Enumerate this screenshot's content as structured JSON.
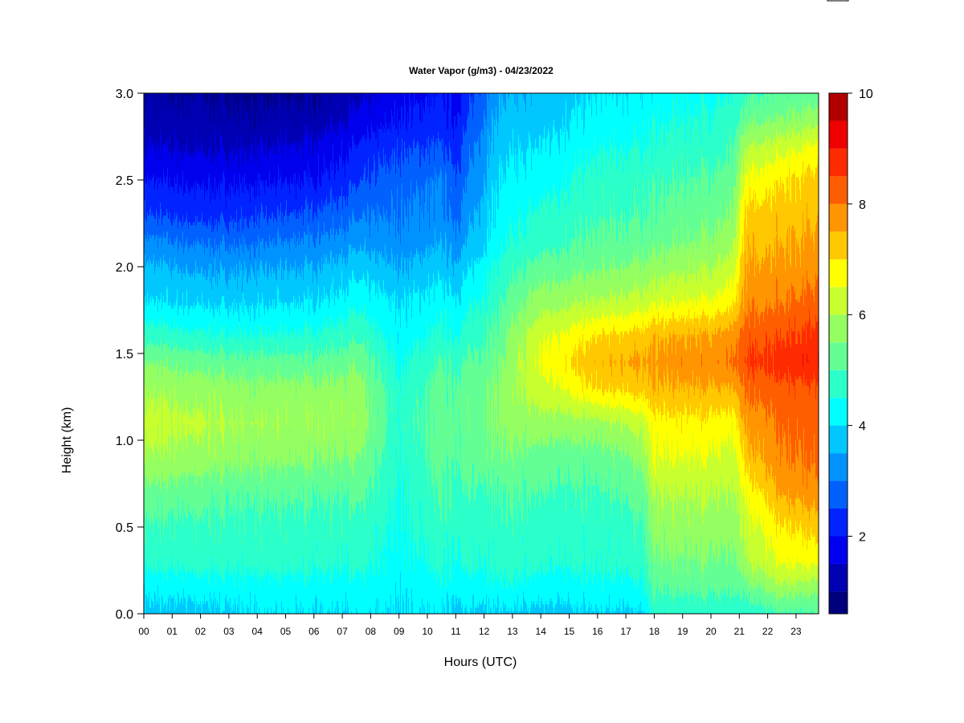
{
  "chart_data": {
    "type": "heatmap",
    "title": "Water Vapor (g/m3) - 04/23/2022",
    "xlabel": "Hours (UTC)",
    "ylabel": "Height (km)",
    "x_ticks": [
      "00",
      "01",
      "02",
      "03",
      "04",
      "05",
      "06",
      "07",
      "08",
      "09",
      "10",
      "11",
      "12",
      "13",
      "14",
      "15",
      "16",
      "17",
      "18",
      "19",
      "20",
      "21",
      "22",
      "23"
    ],
    "xlim": [
      0,
      23.8
    ],
    "y_ticks": [
      "0.0",
      "0.5",
      "1.0",
      "1.5",
      "2.0",
      "2.5",
      "3.0"
    ],
    "ylim": [
      0,
      3.0
    ],
    "colorbar": {
      "ticks": [
        "2",
        "4",
        "6",
        "8",
        "10"
      ],
      "range": [
        0.6,
        10
      ],
      "levels": [
        0.6,
        1.0,
        1.5,
        2.0,
        2.5,
        3.0,
        3.5,
        4.0,
        4.5,
        5.0,
        5.5,
        6.0,
        6.5,
        7.0,
        7.5,
        8.0,
        8.5,
        9.0,
        9.5,
        10.0
      ],
      "colors": [
        "#00007f",
        "#0000b2",
        "#0000ee",
        "#0023ff",
        "#0061ff",
        "#0093ff",
        "#00c8ff",
        "#00ffff",
        "#2bffca",
        "#63ff94",
        "#95ff61",
        "#c8ff2f",
        "#ffff00",
        "#ffc800",
        "#ff9500",
        "#ff5e00",
        "#ff2b00",
        "#ee0000",
        "#b20000",
        "#7f0000"
      ]
    },
    "heights": [
      0.0,
      0.1,
      0.2,
      0.3,
      0.5,
      0.7,
      0.9,
      1.1,
      1.3,
      1.45,
      1.6,
      1.8,
      2.0,
      2.15,
      2.3,
      2.5,
      2.7,
      2.85,
      3.0
    ],
    "profiles": [
      {
        "hour": 0,
        "values": [
          3.8,
          4.0,
          4.3,
          4.6,
          4.9,
          5.3,
          5.9,
          6.2,
          5.9,
          5.5,
          4.8,
          4.0,
          3.6,
          3.1,
          2.5,
          2.0,
          1.5,
          1.2,
          1.0
        ]
      },
      {
        "hour": 2,
        "values": [
          3.8,
          4.1,
          4.4,
          4.7,
          4.9,
          5.2,
          5.8,
          6.1,
          5.8,
          5.3,
          4.6,
          3.9,
          3.4,
          2.9,
          2.3,
          1.9,
          1.4,
          1.2,
          1.0
        ]
      },
      {
        "hour": 4,
        "values": [
          4.0,
          4.2,
          4.4,
          4.7,
          4.8,
          5.1,
          5.6,
          5.9,
          5.6,
          5.2,
          4.5,
          3.9,
          3.4,
          2.9,
          2.4,
          1.9,
          1.4,
          1.1,
          0.9
        ]
      },
      {
        "hour": 6,
        "values": [
          4.0,
          4.2,
          4.4,
          4.7,
          4.8,
          5.1,
          5.6,
          5.9,
          5.7,
          5.2,
          4.6,
          4.0,
          3.5,
          3.1,
          2.6,
          2.0,
          1.6,
          1.2,
          1.0
        ]
      },
      {
        "hour": 7.5,
        "values": [
          4.0,
          4.2,
          4.4,
          4.6,
          4.8,
          5.1,
          5.5,
          5.8,
          5.7,
          5.4,
          4.9,
          4.3,
          3.8,
          3.3,
          2.9,
          2.4,
          2.0,
          1.6,
          1.3
        ]
      },
      {
        "hour": 9,
        "values": [
          4.0,
          4.1,
          4.2,
          4.3,
          4.4,
          4.5,
          4.6,
          4.7,
          4.6,
          4.4,
          4.2,
          4.0,
          3.5,
          3.2,
          3.0,
          2.8,
          2.4,
          2.0,
          1.8
        ]
      },
      {
        "hour": 10.5,
        "values": [
          4.0,
          4.2,
          4.4,
          4.6,
          4.8,
          5.0,
          5.2,
          5.3,
          5.2,
          5.0,
          4.6,
          4.2,
          3.8,
          3.4,
          3.2,
          3.0,
          2.5,
          2.2,
          2.0
        ]
      },
      {
        "hour": 11,
        "values": [
          3.9,
          4.1,
          4.3,
          4.5,
          4.7,
          4.9,
          5.1,
          5.2,
          5.1,
          4.9,
          4.5,
          4.1,
          3.6,
          3.2,
          2.9,
          2.6,
          2.3,
          2.0,
          1.8
        ]
      },
      {
        "hour": 12.5,
        "values": [
          3.9,
          4.2,
          4.5,
          4.7,
          4.8,
          5.0,
          5.4,
          5.6,
          5.6,
          5.4,
          5.2,
          4.9,
          4.6,
          4.3,
          4.2,
          4.0,
          3.8,
          3.6,
          3.4
        ]
      },
      {
        "hour": 14,
        "values": [
          3.8,
          4.1,
          4.4,
          4.6,
          4.8,
          5.0,
          5.3,
          5.8,
          6.3,
          6.6,
          6.4,
          5.8,
          5.2,
          4.8,
          4.6,
          4.3,
          4.0,
          3.8,
          3.6
        ]
      },
      {
        "hour": 16,
        "values": [
          3.9,
          4.2,
          4.4,
          4.6,
          4.7,
          4.9,
          5.2,
          5.8,
          7.0,
          7.4,
          7.0,
          6.0,
          5.4,
          5.1,
          4.9,
          4.7,
          4.4,
          4.2,
          4.0
        ]
      },
      {
        "hour": 17.5,
        "values": [
          3.9,
          4.2,
          4.5,
          4.7,
          4.9,
          5.2,
          5.6,
          6.2,
          7.2,
          7.6,
          7.2,
          6.2,
          5.6,
          5.2,
          5.0,
          4.8,
          4.5,
          4.3,
          4.1
        ]
      },
      {
        "hour": 18,
        "values": [
          4.6,
          4.9,
          5.2,
          5.4,
          5.7,
          6.0,
          6.5,
          6.8,
          7.4,
          7.7,
          7.4,
          6.4,
          5.7,
          5.3,
          5.1,
          4.9,
          4.6,
          4.4,
          4.2
        ]
      },
      {
        "hour": 20,
        "values": [
          4.7,
          5.0,
          5.3,
          5.5,
          5.8,
          6.1,
          6.5,
          6.9,
          7.5,
          7.9,
          7.6,
          6.6,
          6.0,
          5.6,
          5.4,
          5.1,
          4.8,
          4.6,
          4.4
        ]
      },
      {
        "hour": 20.8,
        "values": [
          4.6,
          4.9,
          5.1,
          5.3,
          5.6,
          5.9,
          6.2,
          6.6,
          7.4,
          8.0,
          7.7,
          6.8,
          6.2,
          5.8,
          5.5,
          5.2,
          4.9,
          4.7,
          4.5
        ]
      },
      {
        "hour": 21.2,
        "values": [
          4.6,
          5.0,
          5.5,
          5.9,
          6.2,
          6.6,
          7.2,
          7.6,
          8.1,
          8.5,
          8.3,
          7.8,
          7.5,
          7.3,
          7.1,
          6.6,
          5.9,
          5.3,
          4.9
        ]
      },
      {
        "hour": 22.5,
        "values": [
          5.0,
          5.6,
          6.2,
          6.6,
          7.0,
          7.6,
          8.0,
          8.1,
          8.4,
          8.8,
          8.5,
          8.0,
          7.7,
          7.5,
          7.3,
          7.0,
          6.3,
          5.6,
          5.1
        ]
      },
      {
        "hour": 23.8,
        "values": [
          5.0,
          5.4,
          6.0,
          6.6,
          7.2,
          7.8,
          8.1,
          8.2,
          8.4,
          8.9,
          8.7,
          8.2,
          7.8,
          7.6,
          7.4,
          7.2,
          6.6,
          5.8,
          5.2
        ]
      }
    ]
  }
}
